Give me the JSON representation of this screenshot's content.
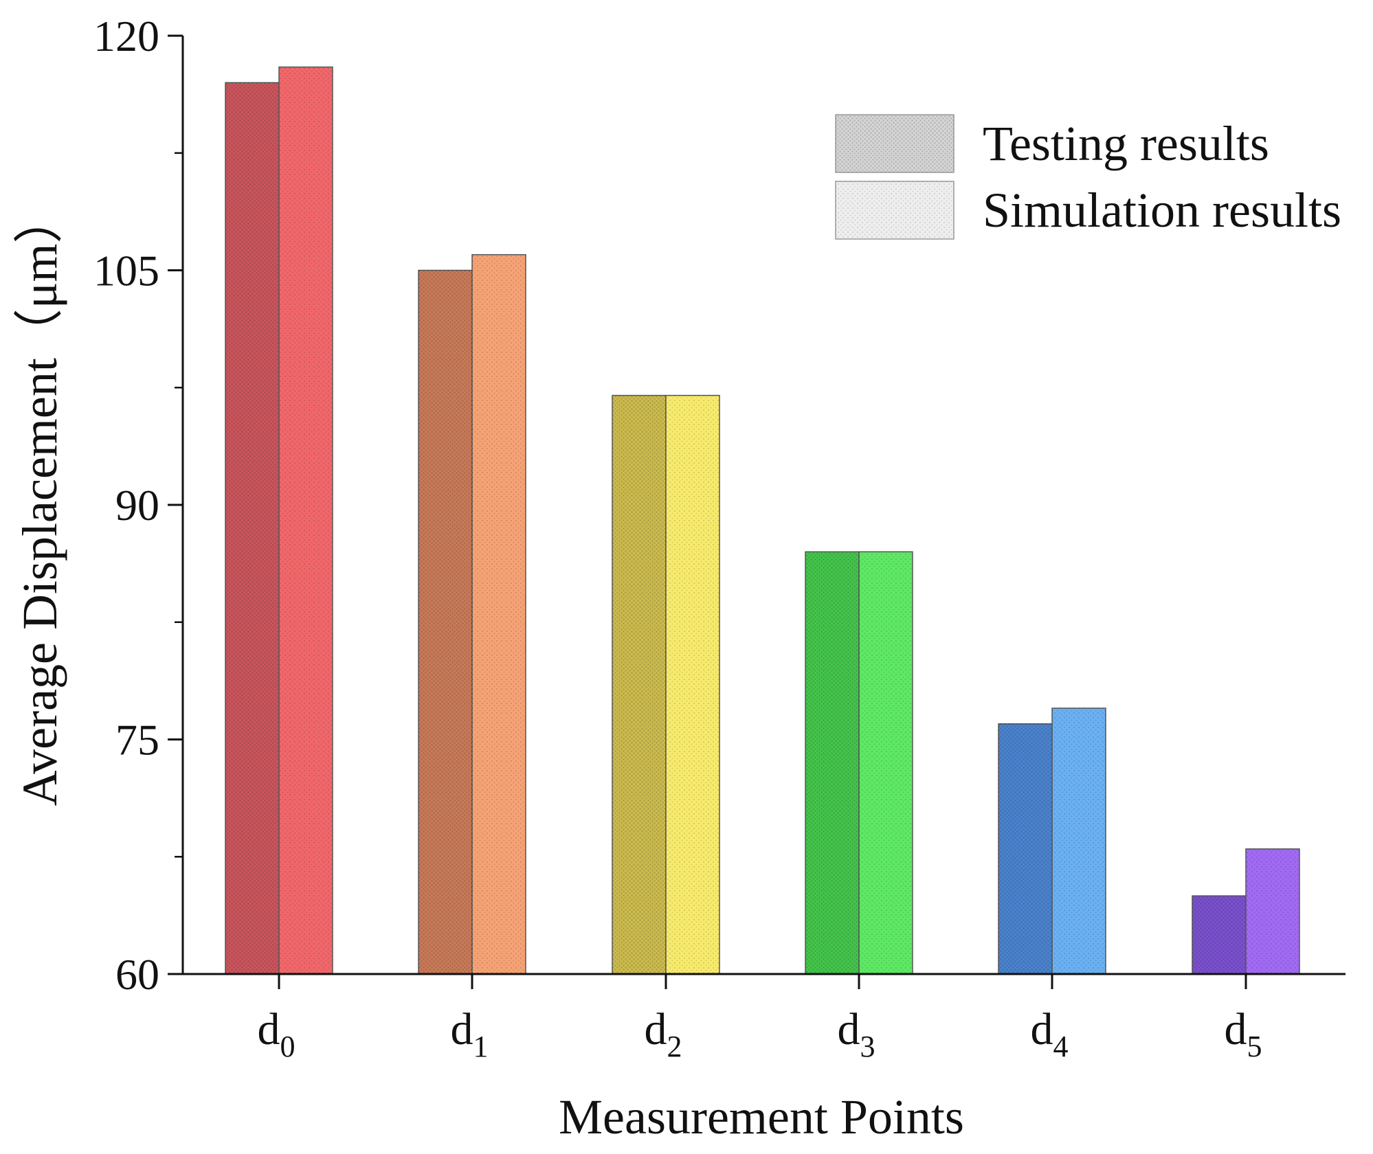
{
  "chart_data": {
    "type": "bar",
    "title": "",
    "xlabel": "Measurement Points",
    "ylabel": "Average Displacement（μm）",
    "ylim": [
      60,
      120
    ],
    "yticks": [
      60,
      75,
      90,
      105,
      120
    ],
    "grid": false,
    "legend_position": "top-right",
    "categories": [
      {
        "base": "d",
        "sub": "0"
      },
      {
        "base": "d",
        "sub": "1"
      },
      {
        "base": "d",
        "sub": "2"
      },
      {
        "base": "d",
        "sub": "3"
      },
      {
        "base": "d",
        "sub": "4"
      },
      {
        "base": "d",
        "sub": "5"
      }
    ],
    "series": [
      {
        "name": "Testing results",
        "values": [
          117,
          105,
          97,
          87,
          76,
          65
        ],
        "colors": [
          "#c9555c",
          "#c77a58",
          "#cbba4e",
          "#44c44c",
          "#4a82cc",
          "#7a50cc"
        ],
        "legend_color": "#d4d4d4"
      },
      {
        "name": "Simulation results",
        "values": [
          118,
          106,
          97,
          87,
          77,
          68
        ],
        "colors": [
          "#f0676a",
          "#f5a275",
          "#f7ea6c",
          "#5ee864",
          "#6ab0f2",
          "#a06af2"
        ],
        "legend_color": "#eeeeee"
      }
    ]
  }
}
